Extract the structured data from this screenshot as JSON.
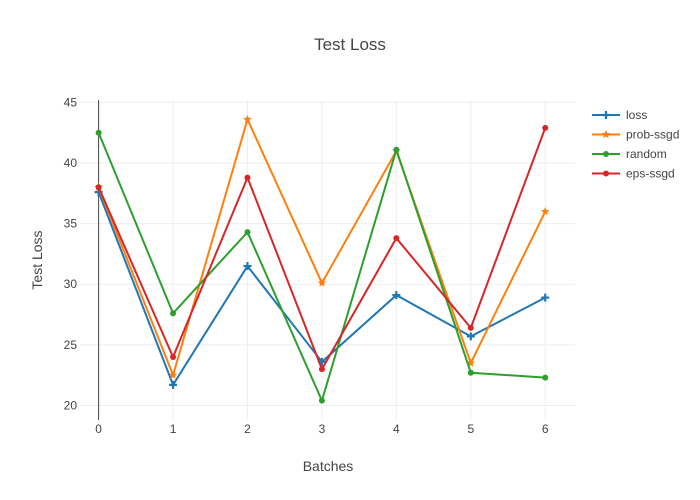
{
  "chart_data": {
    "type": "line",
    "title": "Test Loss",
    "xlabel": "Batches",
    "ylabel": "Test Loss",
    "x": [
      0,
      1,
      2,
      3,
      4,
      5,
      6
    ],
    "xticks": [
      "0",
      "1",
      "2",
      "3",
      "4",
      "5",
      "6"
    ],
    "yticks": [
      "20",
      "25",
      "30",
      "35",
      "40",
      "45"
    ],
    "xlim": [
      -0.25,
      6.4
    ],
    "ylim": [
      18.8,
      45.2
    ],
    "grid": true,
    "legend_position": "top-right",
    "series": [
      {
        "name": "loss",
        "color": "#1f77b4",
        "marker": "cross",
        "values": [
          37.6,
          21.7,
          31.5,
          23.6,
          29.1,
          25.7,
          28.9
        ]
      },
      {
        "name": "prob-ssgd",
        "color": "#ff7f0e",
        "marker": "star",
        "values": [
          38.0,
          22.5,
          43.6,
          30.1,
          41.0,
          23.5,
          36.0
        ]
      },
      {
        "name": "random",
        "color": "#2ca02c",
        "marker": "circle",
        "values": [
          42.5,
          27.6,
          34.3,
          20.4,
          41.1,
          22.7,
          22.3
        ]
      },
      {
        "name": "eps-ssgd",
        "color": "#d62728",
        "marker": "circle",
        "values": [
          38.0,
          24.0,
          38.8,
          23.0,
          33.8,
          26.4,
          42.9
        ]
      }
    ]
  }
}
